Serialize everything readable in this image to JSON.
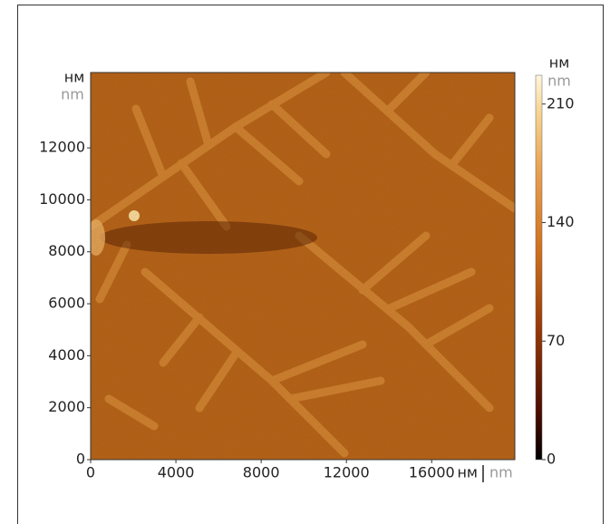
{
  "chart_data": {
    "type": "image",
    "x_units": [
      "нм",
      "nm"
    ],
    "y_units": [
      "нм",
      "nm"
    ],
    "colorbar_units": [
      "нм",
      "nm"
    ],
    "xlim": [
      0,
      19900
    ],
    "xticks": [
      0,
      4000,
      8000,
      12000,
      16000
    ],
    "ylim": [
      0,
      14900
    ],
    "yticks": [
      0,
      2000,
      4000,
      6000,
      8000,
      10000,
      12000
    ],
    "colorbar": {
      "lim": [
        0,
        227
      ],
      "ticks": [
        0,
        70,
        140,
        210
      ]
    }
  }
}
